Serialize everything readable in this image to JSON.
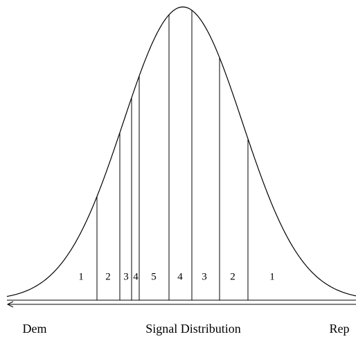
{
  "region_labels": [
    "1",
    "2",
    "3",
    "4",
    "5",
    "4",
    "3",
    "2",
    "1"
  ],
  "axis": {
    "left": "Dem",
    "title": "Signal Distribution",
    "right": "Rep"
  }
}
